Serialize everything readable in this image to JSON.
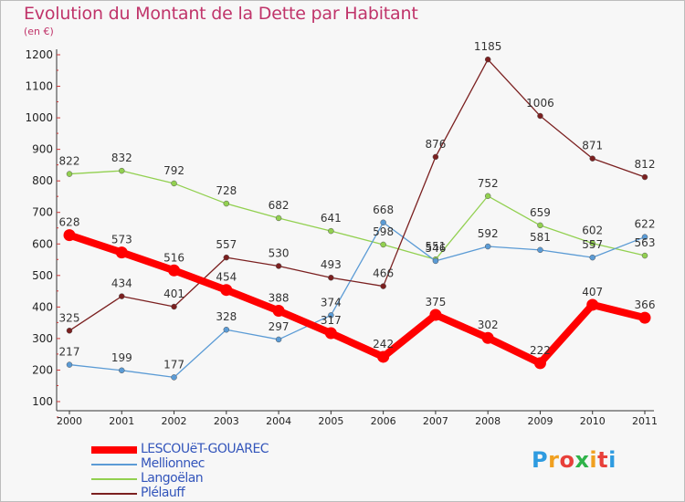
{
  "title": "Evolution du Montant de la Dette par Habitant",
  "unit": "(en €)",
  "logo": {
    "text": "Proxiti",
    "colors": [
      "#2e9be0",
      "#f0a020",
      "#e8403a",
      "#2fb34a",
      "#f0a020",
      "#e8403a",
      "#2e9be0"
    ]
  },
  "legend": [
    {
      "label": "LESCOUëT-GOUAREC"
    },
    {
      "label": "Mellionnec"
    },
    {
      "label": "Langoëlan"
    },
    {
      "label": "Plélauff"
    }
  ],
  "chart_data": {
    "type": "line",
    "title": "Evolution du Montant de la Dette par Habitant",
    "ylabel": "(en €)",
    "xlabel": "",
    "ylim": [
      100,
      1200
    ],
    "yticks": [
      100,
      200,
      300,
      400,
      500,
      600,
      700,
      800,
      900,
      1000,
      1100,
      1200
    ],
    "grid": false,
    "legend_position": "bottom-left",
    "x": [
      "2000",
      "2001",
      "2002",
      "2003",
      "2004",
      "2005",
      "2006",
      "2007",
      "2008",
      "2009",
      "2010",
      "2011"
    ],
    "series": [
      {
        "name": "LESCOUëT-GOUAREC",
        "color": "#ff0000",
        "values": [
          628,
          573,
          516,
          454,
          388,
          317,
          242,
          375,
          302,
          222,
          407,
          366
        ]
      },
      {
        "name": "Mellionnec",
        "color": "#5b9bd5",
        "values": [
          217,
          199,
          177,
          328,
          297,
          374,
          668,
          546,
          592,
          581,
          557,
          622
        ]
      },
      {
        "name": "Langoëlan",
        "color": "#92d050",
        "values": [
          822,
          832,
          792,
          728,
          682,
          641,
          598,
          551,
          752,
          659,
          602,
          563
        ]
      },
      {
        "name": "Plélauff",
        "color": "#7b2020",
        "values": [
          325,
          434,
          401,
          557,
          530,
          493,
          466,
          876,
          1185,
          1006,
          871,
          812
        ]
      }
    ]
  }
}
